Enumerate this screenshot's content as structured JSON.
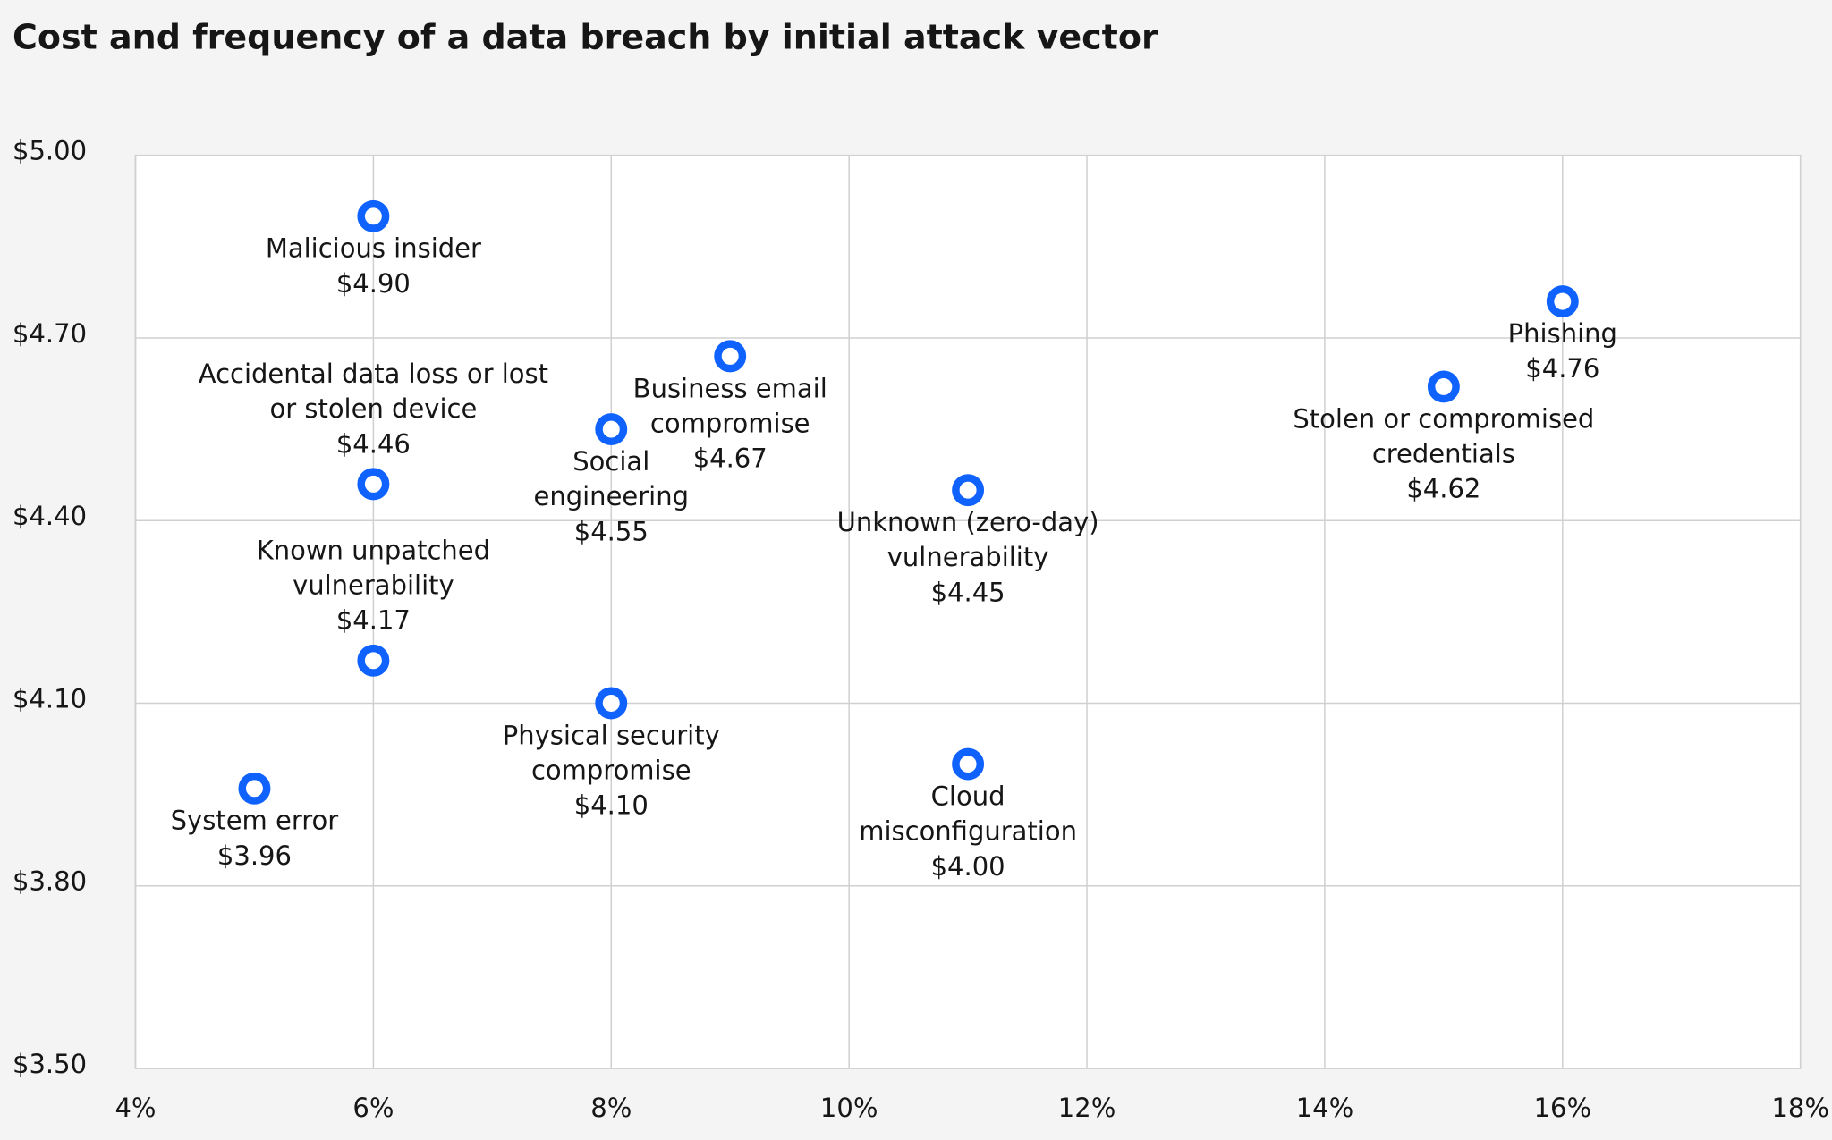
{
  "chart_data": {
    "type": "scatter",
    "title": "Cost and frequency of a data breach by initial attack vector",
    "x": [
      6,
      6,
      6,
      5,
      8,
      8,
      9,
      11,
      11,
      15,
      16
    ],
    "values": [
      4.9,
      4.46,
      4.17,
      3.96,
      4.55,
      4.1,
      4.67,
      4.45,
      4.0,
      4.62,
      4.76
    ],
    "labels": [
      [
        "Malicious insider"
      ],
      [
        "Accidental data loss or lost",
        "or stolen device"
      ],
      [
        "Known unpatched",
        "vulnerability"
      ],
      [
        "System error"
      ],
      [
        "Social",
        "engineering"
      ],
      [
        "Physical security",
        "compromise"
      ],
      [
        "Business email",
        "compromise"
      ],
      [
        "Unknown (zero-day)",
        "vulnerability"
      ],
      [
        "Cloud",
        "misconfiguration"
      ],
      [
        "Stolen or compromised",
        "credentials"
      ],
      [
        "Phishing"
      ]
    ],
    "value_labels": [
      "$4.90",
      "$4.46",
      "$4.17",
      "$3.96",
      "$4.55",
      "$4.10",
      "$4.67",
      "$4.45",
      "$4.00",
      "$4.62",
      "$4.76"
    ],
    "color": "#0f62fe",
    "xlim": [
      4,
      18
    ],
    "ylim": [
      3.5,
      5.0
    ],
    "xticks": [
      {
        "value": 4,
        "label": "4%"
      },
      {
        "value": 6,
        "label": "6%"
      },
      {
        "value": 8,
        "label": "8%"
      },
      {
        "value": 10,
        "label": "10%"
      },
      {
        "value": 12,
        "label": "12%"
      },
      {
        "value": 14,
        "label": "14%"
      },
      {
        "value": 16,
        "label": "16%"
      },
      {
        "value": 18,
        "label": "18%"
      }
    ],
    "yticks": [
      {
        "value": 3.5,
        "label": "$3.50"
      },
      {
        "value": 3.8,
        "label": "$3.80"
      },
      {
        "value": 4.1,
        "label": "$4.10"
      },
      {
        "value": 4.4,
        "label": "$4.40"
      },
      {
        "value": 4.7,
        "label": "$4.70"
      },
      {
        "value": 5.0,
        "label": "$5.00"
      }
    ],
    "grid": true
  }
}
